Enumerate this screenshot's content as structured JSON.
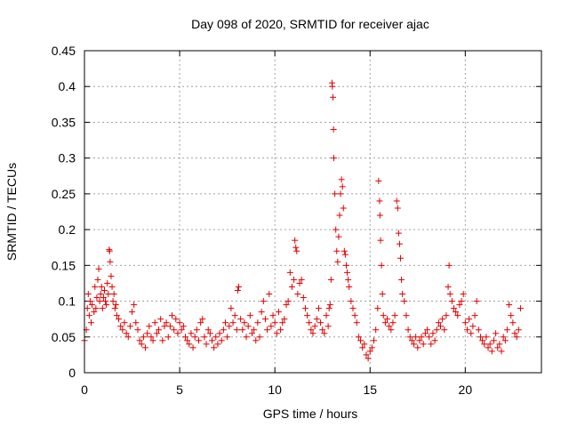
{
  "chart_data": {
    "type": "scatter",
    "title": "Day 098 of 2020, SRMTID for receiver ajac",
    "xlabel": "GPS time / hours",
    "ylabel": "SRMTID / TECUs",
    "xlim": [
      0,
      24
    ],
    "ylim": [
      0,
      0.45
    ],
    "xticks": [
      0,
      5,
      10,
      15,
      20
    ],
    "yticks": [
      0,
      0.05,
      0.1,
      0.15,
      0.2,
      0.25,
      0.3,
      0.35,
      0.4,
      0.45
    ],
    "ytick_labels": [
      "0",
      "0.05",
      "0.1",
      "0.15",
      "0.2",
      "0.25",
      "0.3",
      "0.35",
      "0.4",
      "0.45"
    ],
    "grid": true,
    "marker": "plus",
    "color": "#e00000",
    "series": [
      {
        "name": "SRMTID",
        "points": [
          [
            0.0,
            0.045
          ],
          [
            0.1,
            0.06
          ],
          [
            0.15,
            0.09
          ],
          [
            0.2,
            0.11
          ],
          [
            0.25,
            0.08
          ],
          [
            0.3,
            0.1
          ],
          [
            0.35,
            0.07
          ],
          [
            0.4,
            0.095
          ],
          [
            0.5,
            0.085
          ],
          [
            0.55,
            0.12
          ],
          [
            0.6,
            0.09
          ],
          [
            0.65,
            0.105
          ],
          [
            0.7,
            0.13
          ],
          [
            0.75,
            0.145
          ],
          [
            0.8,
            0.1
          ],
          [
            0.85,
            0.11
          ],
          [
            0.9,
            0.12
          ],
          [
            0.95,
            0.09
          ],
          [
            1.0,
            0.105
          ],
          [
            1.05,
            0.115
          ],
          [
            1.1,
            0.1
          ],
          [
            1.15,
            0.095
          ],
          [
            1.2,
            0.125
          ],
          [
            1.25,
            0.11
          ],
          [
            1.3,
            0.172
          ],
          [
            1.32,
            0.17
          ],
          [
            1.35,
            0.155
          ],
          [
            1.4,
            0.135
          ],
          [
            1.45,
            0.12
          ],
          [
            1.5,
            0.1
          ],
          [
            1.55,
            0.11
          ],
          [
            1.6,
            0.09
          ],
          [
            1.65,
            0.095
          ],
          [
            1.7,
            0.08
          ],
          [
            1.8,
            0.075
          ],
          [
            1.9,
            0.065
          ],
          [
            2.0,
            0.06
          ],
          [
            2.1,
            0.07
          ],
          [
            2.2,
            0.055
          ],
          [
            2.3,
            0.05
          ],
          [
            2.4,
            0.065
          ],
          [
            2.5,
            0.085
          ],
          [
            2.6,
            0.095
          ],
          [
            2.7,
            0.07
          ],
          [
            2.8,
            0.06
          ],
          [
            2.9,
            0.045
          ],
          [
            3.0,
            0.04
          ],
          [
            3.1,
            0.05
          ],
          [
            3.2,
            0.035
          ],
          [
            3.3,
            0.055
          ],
          [
            3.4,
            0.065
          ],
          [
            3.5,
            0.05
          ],
          [
            3.6,
            0.045
          ],
          [
            3.7,
            0.07
          ],
          [
            3.8,
            0.055
          ],
          [
            3.9,
            0.06
          ],
          [
            4.0,
            0.075
          ],
          [
            4.1,
            0.045
          ],
          [
            4.2,
            0.065
          ],
          [
            4.3,
            0.07
          ],
          [
            4.4,
            0.05
          ],
          [
            4.5,
            0.065
          ],
          [
            4.6,
            0.08
          ],
          [
            4.7,
            0.06
          ],
          [
            4.8,
            0.075
          ],
          [
            4.9,
            0.055
          ],
          [
            5.0,
            0.07
          ],
          [
            5.1,
            0.06
          ],
          [
            5.2,
            0.065
          ],
          [
            5.3,
            0.05
          ],
          [
            5.4,
            0.045
          ],
          [
            5.5,
            0.04
          ],
          [
            5.6,
            0.055
          ],
          [
            5.7,
            0.035
          ],
          [
            5.8,
            0.05
          ],
          [
            5.9,
            0.06
          ],
          [
            6.0,
            0.045
          ],
          [
            6.1,
            0.07
          ],
          [
            6.2,
            0.075
          ],
          [
            6.3,
            0.05
          ],
          [
            6.4,
            0.04
          ],
          [
            6.5,
            0.06
          ],
          [
            6.6,
            0.055
          ],
          [
            6.7,
            0.045
          ],
          [
            6.8,
            0.035
          ],
          [
            6.9,
            0.05
          ],
          [
            7.0,
            0.04
          ],
          [
            7.1,
            0.055
          ],
          [
            7.2,
            0.045
          ],
          [
            7.3,
            0.06
          ],
          [
            7.4,
            0.07
          ],
          [
            7.5,
            0.05
          ],
          [
            7.6,
            0.065
          ],
          [
            7.7,
            0.09
          ],
          [
            7.8,
            0.07
          ],
          [
            7.9,
            0.08
          ],
          [
            8.0,
            0.06
          ],
          [
            8.05,
            0.115
          ],
          [
            8.1,
            0.12
          ],
          [
            8.2,
            0.075
          ],
          [
            8.3,
            0.06
          ],
          [
            8.4,
            0.07
          ],
          [
            8.5,
            0.05
          ],
          [
            8.6,
            0.065
          ],
          [
            8.7,
            0.08
          ],
          [
            8.8,
            0.055
          ],
          [
            8.9,
            0.06
          ],
          [
            9.0,
            0.045
          ],
          [
            9.1,
            0.07
          ],
          [
            9.2,
            0.05
          ],
          [
            9.3,
            0.085
          ],
          [
            9.4,
            0.1
          ],
          [
            9.5,
            0.075
          ],
          [
            9.6,
            0.06
          ],
          [
            9.7,
            0.11
          ],
          [
            9.8,
            0.065
          ],
          [
            9.9,
            0.08
          ],
          [
            10.0,
            0.07
          ],
          [
            10.1,
            0.055
          ],
          [
            10.2,
            0.085
          ],
          [
            10.3,
            0.06
          ],
          [
            10.4,
            0.07
          ],
          [
            10.5,
            0.075
          ],
          [
            10.6,
            0.095
          ],
          [
            10.7,
            0.1
          ],
          [
            10.8,
            0.14
          ],
          [
            10.9,
            0.12
          ],
          [
            11.0,
            0.13
          ],
          [
            11.05,
            0.185
          ],
          [
            11.1,
            0.175
          ],
          [
            11.15,
            0.17
          ],
          [
            11.2,
            0.11
          ],
          [
            11.3,
            0.125
          ],
          [
            11.4,
            0.13
          ],
          [
            11.5,
            0.105
          ],
          [
            11.6,
            0.09
          ],
          [
            11.7,
            0.08
          ],
          [
            11.8,
            0.07
          ],
          [
            11.9,
            0.06
          ],
          [
            12.0,
            0.055
          ],
          [
            12.1,
            0.065
          ],
          [
            12.2,
            0.075
          ],
          [
            12.3,
            0.09
          ],
          [
            12.4,
            0.07
          ],
          [
            12.5,
            0.06
          ],
          [
            12.6,
            0.055
          ],
          [
            12.7,
            0.08
          ],
          [
            12.8,
            0.065
          ],
          [
            12.85,
            0.09
          ],
          [
            12.9,
            0.095
          ],
          [
            12.95,
            0.13
          ],
          [
            13.0,
            0.405
          ],
          [
            13.02,
            0.4
          ],
          [
            13.05,
            0.385
          ],
          [
            13.08,
            0.34
          ],
          [
            13.1,
            0.3
          ],
          [
            13.15,
            0.25
          ],
          [
            13.2,
            0.2
          ],
          [
            13.25,
            0.17
          ],
          [
            13.3,
            0.155
          ],
          [
            13.35,
            0.19
          ],
          [
            13.4,
            0.22
          ],
          [
            13.45,
            0.25
          ],
          [
            13.5,
            0.27
          ],
          [
            13.55,
            0.26
          ],
          [
            13.6,
            0.23
          ],
          [
            13.65,
            0.17
          ],
          [
            13.7,
            0.165
          ],
          [
            13.75,
            0.15
          ],
          [
            13.8,
            0.14
          ],
          [
            13.85,
            0.13
          ],
          [
            13.9,
            0.12
          ],
          [
            14.0,
            0.1
          ],
          [
            14.1,
            0.09
          ],
          [
            14.2,
            0.08
          ],
          [
            14.3,
            0.07
          ],
          [
            14.4,
            0.05
          ],
          [
            14.5,
            0.045
          ],
          [
            14.6,
            0.035
          ],
          [
            14.7,
            0.04
          ],
          [
            14.8,
            0.025
          ],
          [
            14.9,
            0.02
          ],
          [
            15.0,
            0.03
          ],
          [
            15.1,
            0.035
          ],
          [
            15.2,
            0.045
          ],
          [
            15.3,
            0.06
          ],
          [
            15.4,
            0.09
          ],
          [
            15.45,
            0.268
          ],
          [
            15.5,
            0.24
          ],
          [
            15.52,
            0.22
          ],
          [
            15.55,
            0.185
          ],
          [
            15.6,
            0.15
          ],
          [
            15.65,
            0.11
          ],
          [
            15.7,
            0.08
          ],
          [
            15.8,
            0.07
          ],
          [
            15.9,
            0.075
          ],
          [
            16.0,
            0.065
          ],
          [
            16.1,
            0.06
          ],
          [
            16.2,
            0.07
          ],
          [
            16.3,
            0.08
          ],
          [
            16.4,
            0.24
          ],
          [
            16.45,
            0.23
          ],
          [
            16.5,
            0.195
          ],
          [
            16.55,
            0.18
          ],
          [
            16.6,
            0.16
          ],
          [
            16.65,
            0.13
          ],
          [
            16.7,
            0.11
          ],
          [
            16.8,
            0.1
          ],
          [
            16.9,
            0.08
          ],
          [
            17.0,
            0.06
          ],
          [
            17.1,
            0.05
          ],
          [
            17.2,
            0.045
          ],
          [
            17.3,
            0.04
          ],
          [
            17.4,
            0.05
          ],
          [
            17.5,
            0.035
          ],
          [
            17.6,
            0.045
          ],
          [
            17.7,
            0.05
          ],
          [
            17.8,
            0.04
          ],
          [
            17.9,
            0.055
          ],
          [
            18.0,
            0.06
          ],
          [
            18.1,
            0.05
          ],
          [
            18.2,
            0.04
          ],
          [
            18.3,
            0.055
          ],
          [
            18.4,
            0.045
          ],
          [
            18.5,
            0.06
          ],
          [
            18.6,
            0.07
          ],
          [
            18.7,
            0.065
          ],
          [
            18.8,
            0.075
          ],
          [
            18.9,
            0.06
          ],
          [
            19.0,
            0.08
          ],
          [
            19.1,
            0.12
          ],
          [
            19.15,
            0.15
          ],
          [
            19.2,
            0.11
          ],
          [
            19.3,
            0.1
          ],
          [
            19.4,
            0.09
          ],
          [
            19.5,
            0.085
          ],
          [
            19.6,
            0.08
          ],
          [
            19.7,
            0.095
          ],
          [
            19.8,
            0.1
          ],
          [
            19.9,
            0.11
          ],
          [
            20.0,
            0.07
          ],
          [
            20.1,
            0.06
          ],
          [
            20.2,
            0.075
          ],
          [
            20.3,
            0.055
          ],
          [
            20.4,
            0.065
          ],
          [
            20.5,
            0.08
          ],
          [
            20.6,
            0.1
          ],
          [
            20.7,
            0.06
          ],
          [
            20.8,
            0.05
          ],
          [
            20.9,
            0.045
          ],
          [
            21.0,
            0.04
          ],
          [
            21.1,
            0.05
          ],
          [
            21.2,
            0.035
          ],
          [
            21.3,
            0.04
          ],
          [
            21.4,
            0.03
          ],
          [
            21.5,
            0.045
          ],
          [
            21.6,
            0.055
          ],
          [
            21.7,
            0.035
          ],
          [
            21.8,
            0.04
          ],
          [
            21.9,
            0.03
          ],
          [
            22.0,
            0.05
          ],
          [
            22.1,
            0.045
          ],
          [
            22.2,
            0.06
          ],
          [
            22.3,
            0.095
          ],
          [
            22.4,
            0.08
          ],
          [
            22.5,
            0.07
          ],
          [
            22.6,
            0.055
          ],
          [
            22.7,
            0.05
          ],
          [
            22.8,
            0.06
          ],
          [
            22.9,
            0.09
          ]
        ]
      }
    ]
  }
}
